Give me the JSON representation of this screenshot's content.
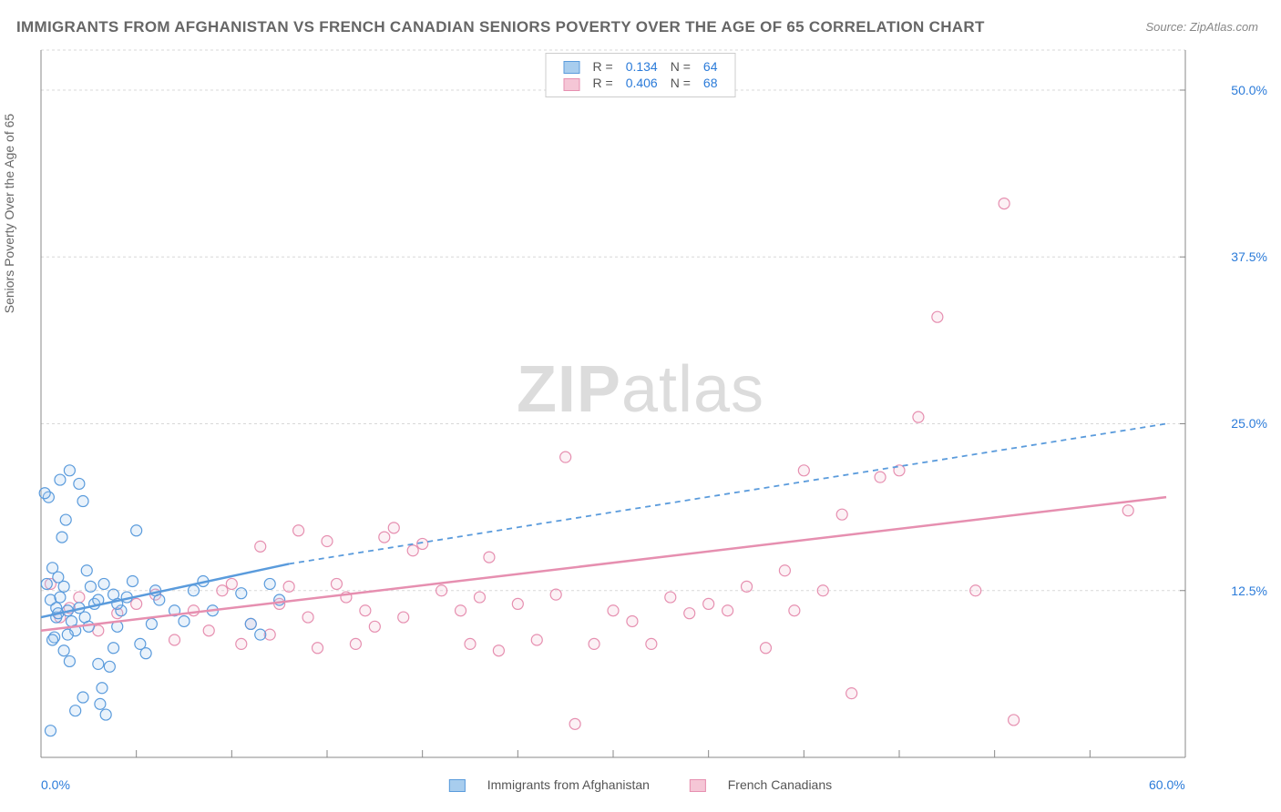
{
  "title": "IMMIGRANTS FROM AFGHANISTAN VS FRENCH CANADIAN SENIORS POVERTY OVER THE AGE OF 65 CORRELATION CHART",
  "source": "Source: ZipAtlas.com",
  "y_axis_label": "Seniors Poverty Over the Age of 65",
  "watermark_bold": "ZIP",
  "watermark_rest": "atlas",
  "chart": {
    "type": "scatter",
    "background_color": "#ffffff",
    "grid_color": "#d8d8d8",
    "grid_dash": "3,3",
    "axis_line_color": "#888888",
    "tick_color": "#888888",
    "xlim": [
      0,
      60
    ],
    "ylim": [
      0,
      53
    ],
    "x_ticks_major": [
      0,
      60
    ],
    "x_ticks_major_labels": [
      "0.0%",
      "60.0%"
    ],
    "x_ticks_minor": [
      5,
      10,
      15,
      20,
      25,
      30,
      35,
      40,
      45,
      50,
      55
    ],
    "y_ticks": [
      12.5,
      25.0,
      37.5,
      50.0
    ],
    "y_tick_labels": [
      "12.5%",
      "25.0%",
      "37.5%",
      "50.0%"
    ],
    "marker_radius": 6,
    "marker_stroke_width": 1.2,
    "marker_fill_opacity": 0.25,
    "trendline_width": 2.5,
    "trendline_dash_width": 1.8
  },
  "series": [
    {
      "name": "Immigrants from Afghanistan",
      "color_stroke": "#5a9bdc",
      "color_fill": "#a8cdee",
      "r_value": "0.134",
      "n_value": "64",
      "trend_solid": {
        "x1": 0,
        "y1": 10.5,
        "x2": 13,
        "y2": 14.5
      },
      "trend_dash": {
        "x1": 13,
        "y1": 14.5,
        "x2": 59,
        "y2": 25.0
      },
      "points": [
        [
          0.3,
          13.0
        ],
        [
          0.5,
          11.8
        ],
        [
          0.4,
          19.5
        ],
        [
          0.6,
          14.2
        ],
        [
          0.8,
          10.5
        ],
        [
          1.0,
          12.0
        ],
        [
          0.7,
          9.0
        ],
        [
          1.2,
          8.0
        ],
        [
          1.5,
          7.2
        ],
        [
          0.9,
          13.5
        ],
        [
          1.1,
          16.5
        ],
        [
          1.3,
          17.8
        ],
        [
          1.4,
          11.0
        ],
        [
          1.6,
          10.2
        ],
        [
          1.8,
          9.5
        ],
        [
          2.0,
          20.5
        ],
        [
          2.2,
          19.2
        ],
        [
          2.4,
          14.0
        ],
        [
          2.6,
          12.8
        ],
        [
          2.8,
          11.5
        ],
        [
          3.0,
          7.0
        ],
        [
          3.2,
          5.2
        ],
        [
          3.1,
          4.0
        ],
        [
          3.4,
          3.2
        ],
        [
          0.5,
          2.0
        ],
        [
          1.8,
          3.5
        ],
        [
          2.2,
          4.5
        ],
        [
          3.6,
          6.8
        ],
        [
          3.8,
          8.2
        ],
        [
          4.0,
          9.8
        ],
        [
          4.2,
          11.0
        ],
        [
          4.5,
          12.0
        ],
        [
          4.8,
          13.2
        ],
        [
          5.0,
          17.0
        ],
        [
          5.2,
          8.5
        ],
        [
          5.5,
          7.8
        ],
        [
          5.8,
          10.0
        ],
        [
          6.0,
          12.5
        ],
        [
          6.2,
          11.8
        ],
        [
          0.2,
          19.8
        ],
        [
          1.0,
          20.8
        ],
        [
          1.5,
          21.5
        ],
        [
          0.8,
          11.2
        ],
        [
          1.2,
          12.8
        ],
        [
          0.6,
          8.8
        ],
        [
          1.4,
          9.2
        ],
        [
          0.9,
          10.8
        ],
        [
          2.0,
          11.2
        ],
        [
          2.3,
          10.5
        ],
        [
          2.5,
          9.8
        ],
        [
          3.0,
          11.8
        ],
        [
          3.3,
          13.0
        ],
        [
          3.8,
          12.2
        ],
        [
          4.0,
          11.5
        ],
        [
          10.5,
          12.3
        ],
        [
          11.0,
          10.0
        ],
        [
          11.5,
          9.2
        ],
        [
          12.0,
          13.0
        ],
        [
          12.5,
          11.8
        ],
        [
          7.0,
          11.0
        ],
        [
          7.5,
          10.2
        ],
        [
          8.0,
          12.5
        ],
        [
          8.5,
          13.2
        ],
        [
          9.0,
          11.0
        ]
      ]
    },
    {
      "name": "French Canadians",
      "color_stroke": "#e68fb0",
      "color_fill": "#f5c6d6",
      "r_value": "0.406",
      "n_value": "68",
      "trend_solid": {
        "x1": 0,
        "y1": 9.5,
        "x2": 59,
        "y2": 19.5
      },
      "trend_dash": null,
      "points": [
        [
          0.5,
          13.0
        ],
        [
          1.0,
          10.5
        ],
        [
          1.5,
          11.2
        ],
        [
          2.0,
          12.0
        ],
        [
          3.0,
          9.5
        ],
        [
          4.0,
          10.8
        ],
        [
          5.0,
          11.5
        ],
        [
          6.0,
          12.2
        ],
        [
          7.0,
          8.8
        ],
        [
          8.0,
          11.0
        ],
        [
          8.8,
          9.5
        ],
        [
          9.5,
          12.5
        ],
        [
          10.0,
          13.0
        ],
        [
          10.5,
          8.5
        ],
        [
          11.0,
          10.0
        ],
        [
          11.5,
          15.8
        ],
        [
          12.0,
          9.2
        ],
        [
          12.5,
          11.5
        ],
        [
          13.0,
          12.8
        ],
        [
          13.5,
          17.0
        ],
        [
          14.0,
          10.5
        ],
        [
          14.5,
          8.2
        ],
        [
          15.0,
          16.2
        ],
        [
          15.5,
          13.0
        ],
        [
          16.0,
          12.0
        ],
        [
          16.5,
          8.5
        ],
        [
          17.0,
          11.0
        ],
        [
          17.5,
          9.8
        ],
        [
          18.0,
          16.5
        ],
        [
          18.5,
          17.2
        ],
        [
          19.0,
          10.5
        ],
        [
          19.5,
          15.5
        ],
        [
          20.0,
          16.0
        ],
        [
          21.0,
          12.5
        ],
        [
          22.0,
          11.0
        ],
        [
          22.5,
          8.5
        ],
        [
          23.0,
          12.0
        ],
        [
          23.5,
          15.0
        ],
        [
          24.0,
          8.0
        ],
        [
          25.0,
          11.5
        ],
        [
          26.0,
          8.8
        ],
        [
          27.0,
          12.2
        ],
        [
          27.5,
          22.5
        ],
        [
          28.0,
          2.5
        ],
        [
          29.0,
          8.5
        ],
        [
          30.0,
          11.0
        ],
        [
          31.0,
          10.2
        ],
        [
          32.0,
          8.5
        ],
        [
          33.0,
          12.0
        ],
        [
          34.0,
          10.8
        ],
        [
          35.0,
          11.5
        ],
        [
          36.0,
          11.0
        ],
        [
          37.0,
          12.8
        ],
        [
          38.0,
          8.2
        ],
        [
          39.0,
          14.0
        ],
        [
          39.5,
          11.0
        ],
        [
          40.0,
          21.5
        ],
        [
          41.0,
          12.5
        ],
        [
          42.0,
          18.2
        ],
        [
          42.5,
          4.8
        ],
        [
          44.0,
          21.0
        ],
        [
          45.0,
          21.5
        ],
        [
          46.0,
          25.5
        ],
        [
          47.0,
          33.0
        ],
        [
          49.0,
          12.5
        ],
        [
          51.0,
          2.8
        ],
        [
          50.5,
          41.5
        ],
        [
          57.0,
          18.5
        ]
      ]
    }
  ],
  "legend_top": {
    "r_label": "R =",
    "n_label": "N ="
  },
  "legend_bottom": {
    "label1": "Immigrants from Afghanistan",
    "label2": "French Canadians"
  }
}
